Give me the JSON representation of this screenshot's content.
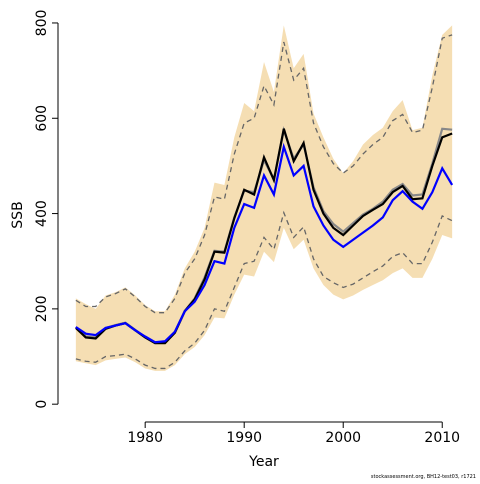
{
  "chart_data": {
    "type": "line",
    "x_label": "Year",
    "y_label": "SSB",
    "footnote": "stockassessment.org, BH12-test03, r1721",
    "x": [
      1973,
      1974,
      1975,
      1976,
      1977,
      1978,
      1979,
      1980,
      1981,
      1982,
      1983,
      1984,
      1985,
      1986,
      1987,
      1988,
      1989,
      1990,
      1991,
      1992,
      1993,
      1994,
      1995,
      1996,
      1997,
      1998,
      1999,
      2000,
      2001,
      2002,
      2003,
      2004,
      2005,
      2006,
      2007,
      2008,
      2009,
      2010,
      2011
    ],
    "xlim": [
      1971.6,
      2012.4
    ],
    "xticks": [
      1980,
      1990,
      2000,
      2010
    ],
    "ylim": [
      -29,
      823
    ],
    "yticks": [
      0,
      200,
      400,
      600,
      800
    ],
    "band": {
      "color": "#f5deb3",
      "upper": [
        222,
        210,
        200,
        228,
        235,
        245,
        228,
        208,
        195,
        195,
        230,
        285,
        320,
        370,
        465,
        460,
        560,
        632,
        615,
        718,
        655,
        795,
        705,
        735,
        610,
        560,
        515,
        485,
        510,
        545,
        565,
        580,
        615,
        638,
        575,
        580,
        690,
        775,
        795
      ],
      "lower": [
        90,
        86,
        82,
        92,
        95,
        98,
        88,
        75,
        70,
        70,
        82,
        105,
        120,
        145,
        182,
        180,
        230,
        272,
        268,
        320,
        298,
        370,
        325,
        345,
        285,
        250,
        230,
        220,
        228,
        240,
        250,
        260,
        275,
        285,
        265,
        265,
        305,
        355,
        348
      ]
    },
    "series": [
      {
        "color": "#666666",
        "dashed": true,
        "values": [
          218,
          205,
          205,
          225,
          232,
          242,
          225,
          205,
          192,
          192,
          222,
          275,
          305,
          355,
          435,
          430,
          525,
          590,
          600,
          668,
          628,
          760,
          680,
          705,
          590,
          540,
          505,
          485,
          500,
          525,
          545,
          560,
          595,
          608,
          570,
          575,
          665,
          768,
          775
        ]
      },
      {
        "color": "#666666",
        "dashed": true,
        "values": [
          95,
          90,
          88,
          100,
          102,
          105,
          95,
          82,
          75,
          75,
          88,
          112,
          128,
          155,
          200,
          195,
          245,
          295,
          300,
          350,
          325,
          402,
          350,
          372,
          305,
          268,
          255,
          245,
          252,
          265,
          278,
          290,
          310,
          318,
          295,
          295,
          340,
          395,
          385
        ]
      },
      {
        "color": "#888888",
        "dashed": false,
        "values": [
          162,
          142,
          140,
          160,
          166,
          171,
          156,
          141,
          129,
          130,
          152,
          196,
          222,
          266,
          322,
          320,
          392,
          448,
          445,
          512,
          472,
          575,
          515,
          545,
          455,
          405,
          378,
          362,
          380,
          398,
          410,
          425,
          450,
          462,
          438,
          440,
          505,
          578,
          576
        ]
      },
      {
        "color": "#000000",
        "dashed": false,
        "values": [
          160,
          140,
          138,
          158,
          165,
          170,
          155,
          140,
          128,
          128,
          150,
          195,
          220,
          262,
          320,
          318,
          390,
          450,
          440,
          518,
          470,
          578,
          510,
          548,
          450,
          400,
          370,
          355,
          375,
          395,
          408,
          420,
          445,
          458,
          430,
          432,
          500,
          560,
          568
        ]
      },
      {
        "color": "#0000ff",
        "dashed": false,
        "values": [
          162,
          148,
          145,
          160,
          165,
          170,
          155,
          142,
          130,
          132,
          152,
          195,
          215,
          250,
          300,
          295,
          370,
          420,
          412,
          480,
          440,
          540,
          480,
          500,
          415,
          375,
          345,
          330,
          345,
          360,
          375,
          392,
          428,
          447,
          425,
          410,
          445,
          495,
          460
        ]
      }
    ]
  }
}
